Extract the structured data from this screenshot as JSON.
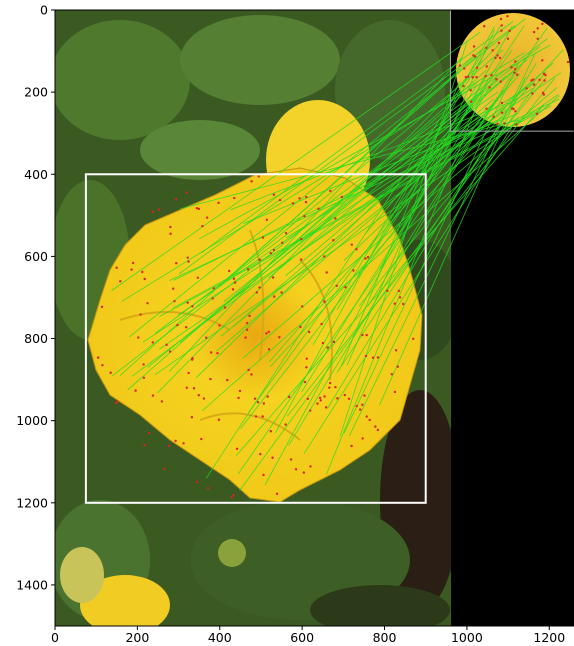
{
  "figure": {
    "x_ticks": [
      "0",
      "200",
      "400",
      "600",
      "800",
      "1000",
      "1200"
    ],
    "y_ticks": [
      "0",
      "200",
      "400",
      "600",
      "800",
      "1000",
      "1200",
      "1400"
    ],
    "x_tick_values": [
      0,
      200,
      400,
      600,
      800,
      1000,
      1200
    ],
    "y_tick_values": [
      0,
      200,
      400,
      600,
      800,
      1000,
      1200,
      1400
    ],
    "xlim": [
      0,
      1260
    ],
    "ylim": [
      0,
      1500
    ],
    "detection_box": {
      "x0": 75,
      "y0": 400,
      "x1": 900,
      "y1": 1200
    },
    "template_region": {
      "x0": 960,
      "y0": 0,
      "x1": 1260,
      "y1": 295
    },
    "colors": {
      "match_line": "#22dd22",
      "keypoint": "#dd2222",
      "box": "#ffffff",
      "flower": "#f2cf1c",
      "foliage": "#3a5a22",
      "background": "#000000"
    }
  }
}
